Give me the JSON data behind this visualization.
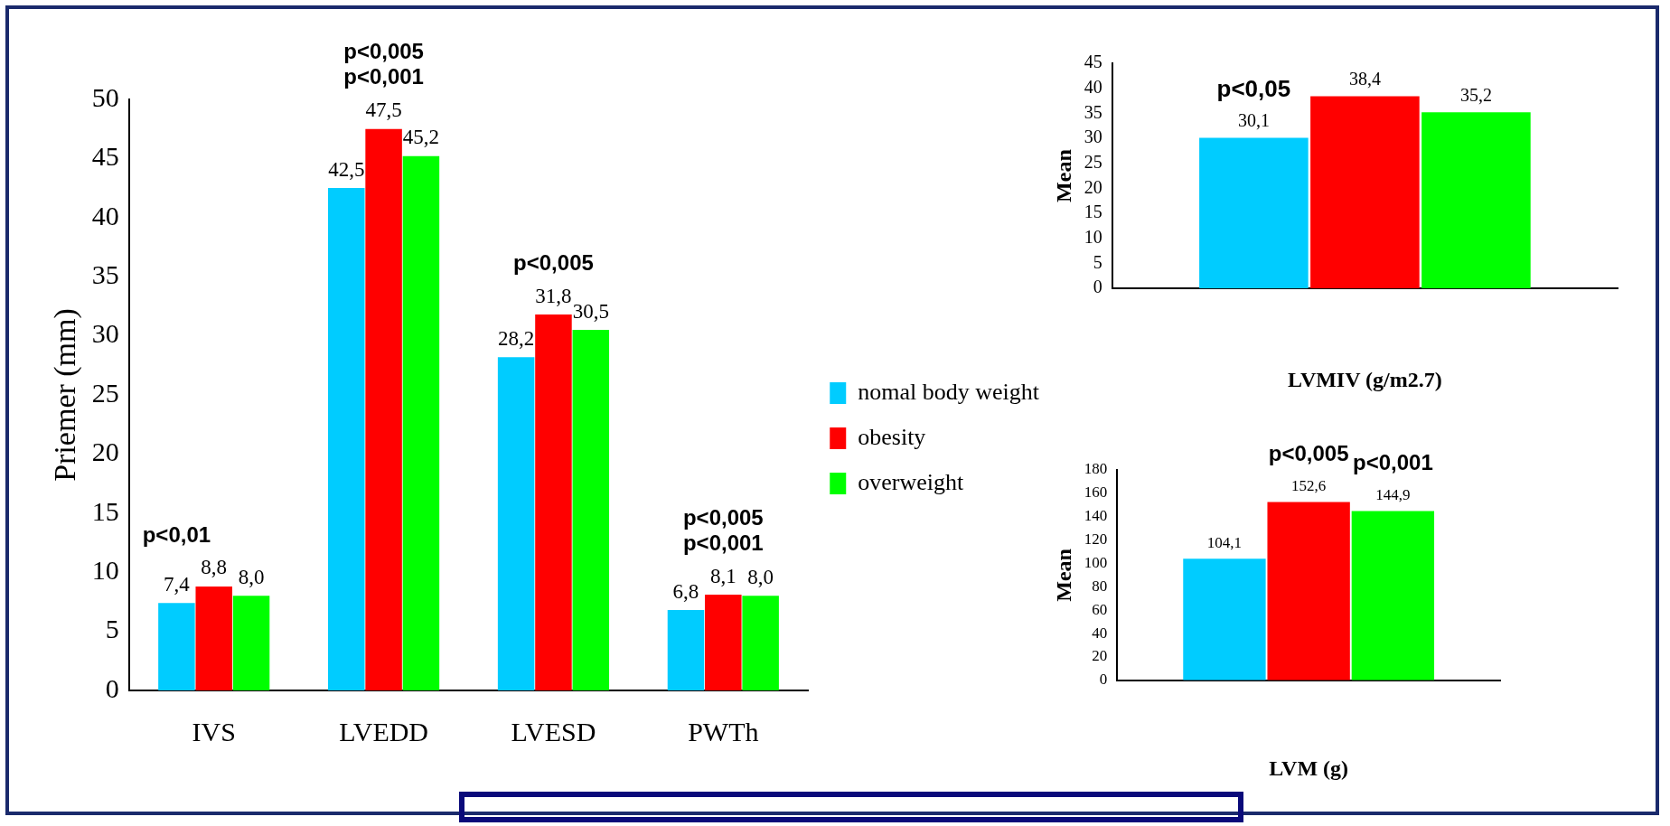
{
  "chart_data": [
    {
      "type": "bar",
      "ylabel": "Priemer (mm)",
      "categories": [
        "IVS",
        "LVEDD",
        "LVESD",
        "PWTh"
      ],
      "series": [
        {
          "name": "nomal body weight",
          "color": "#00ccff",
          "values": [
            7.4,
            42.5,
            28.2,
            6.8
          ],
          "value_labels": [
            "7,4",
            "42,5",
            "28,2",
            "6,8"
          ]
        },
        {
          "name": "obesity",
          "color": "#ff0000",
          "values": [
            8.8,
            47.5,
            31.8,
            8.1
          ],
          "value_labels": [
            "8,8",
            "47,5",
            "31,8",
            "8,1"
          ]
        },
        {
          "name": "overweight",
          "color": "#00ff00",
          "values": [
            8.0,
            45.2,
            30.5,
            8.0
          ],
          "value_labels": [
            "8,0",
            "45,2",
            "30,5",
            "8,0"
          ]
        }
      ],
      "ylim": [
        0,
        50
      ],
      "yticks": [
        0,
        5,
        10,
        15,
        20,
        25,
        30,
        35,
        40,
        45,
        50
      ],
      "grid": false,
      "legend": "right",
      "annotations": [
        "p<0,01",
        "p<0,005",
        "p<0,001",
        "p<0,005",
        "p<0,005",
        "p<0,001"
      ]
    },
    {
      "type": "bar",
      "xlabel": "LVMIV (g/m2.7)",
      "ylabel": "Mean",
      "categories": [
        null
      ],
      "series": [
        {
          "color": "#00ccff",
          "values": [
            30.1
          ],
          "value_labels": [
            "30,1"
          ]
        },
        {
          "color": "#ff0000",
          "values": [
            38.4
          ],
          "value_labels": [
            "38,4"
          ]
        },
        {
          "color": "#00ff00",
          "values": [
            35.2
          ],
          "value_labels": [
            "35,2"
          ]
        }
      ],
      "ylim": [
        0,
        45
      ],
      "yticks": [
        0,
        5,
        10,
        15,
        20,
        25,
        30,
        35,
        40,
        45
      ],
      "grid": false,
      "annotations": [
        "p<0,05"
      ]
    },
    {
      "type": "bar",
      "xlabel": "LVM (g)",
      "ylabel": "Mean",
      "categories": [
        null
      ],
      "series": [
        {
          "color": "#00ccff",
          "values": [
            104.1
          ],
          "value_labels": [
            "104,1"
          ]
        },
        {
          "color": "#ff0000",
          "values": [
            152.6
          ],
          "value_labels": [
            "152,6"
          ]
        },
        {
          "color": "#00ff00",
          "values": [
            144.9
          ],
          "value_labels": [
            "144,9"
          ]
        }
      ],
      "ylim": [
        0,
        180
      ],
      "yticks": [
        0,
        20,
        40,
        60,
        80,
        100,
        120,
        140,
        160,
        180
      ],
      "grid": false,
      "annotations": [
        "p<0,005",
        "p<0,001"
      ]
    }
  ]
}
